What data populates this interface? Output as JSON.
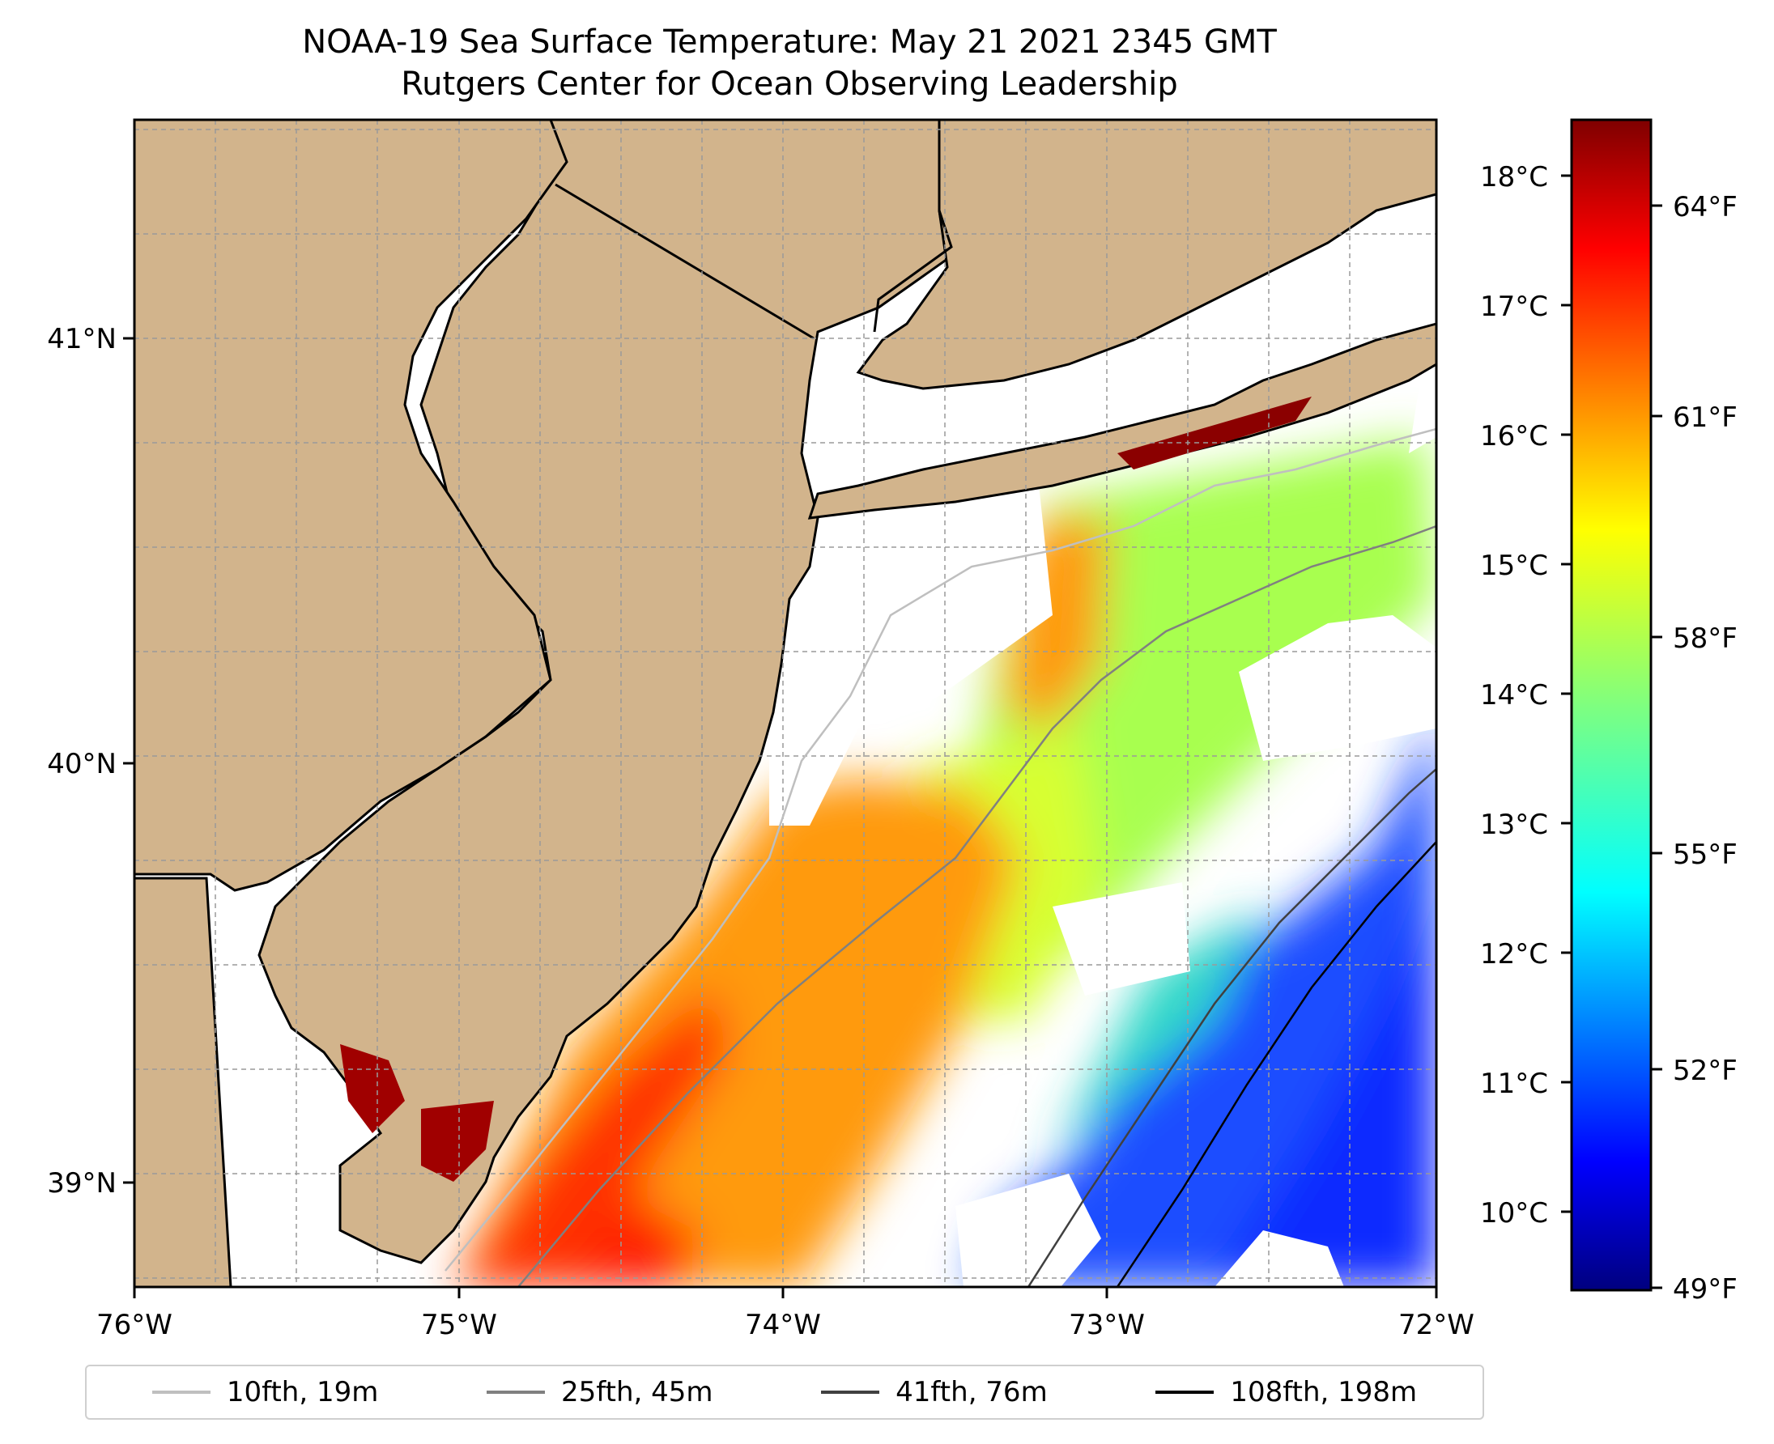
{
  "title": {
    "line1": "NOAA-19 Sea Surface Temperature: May 21 2021 2345 GMT",
    "line2": "Rutgers Center for Ocean Observing Leadership"
  },
  "map": {
    "lon_ticks": [
      "76°W",
      "75°W",
      "74°W",
      "73°W",
      "72°W"
    ],
    "lat_ticks": [
      "41°N",
      "40°N",
      "39°N"
    ],
    "land_color": "#d2b48c",
    "no_data_color": "#ffffff",
    "grid": true
  },
  "colorbar": {
    "celsius_ticks": [
      "18°C",
      "17°C",
      "16°C",
      "15°C",
      "14°C",
      "13°C",
      "12°C",
      "11°C",
      "10°C"
    ],
    "fahrenheit_ticks": [
      "64°F",
      "61°F",
      "58°F",
      "55°F",
      "52°F",
      "49°F"
    ],
    "colormap": "jet"
  },
  "legend": {
    "items": [
      {
        "label": "10fth, 19m",
        "color": "#bfbfbf"
      },
      {
        "label": "25fth, 45m",
        "color": "#808080"
      },
      {
        "label": "41fth, 76m",
        "color": "#404040"
      },
      {
        "label": "108fth, 198m",
        "color": "#000000"
      }
    ]
  }
}
